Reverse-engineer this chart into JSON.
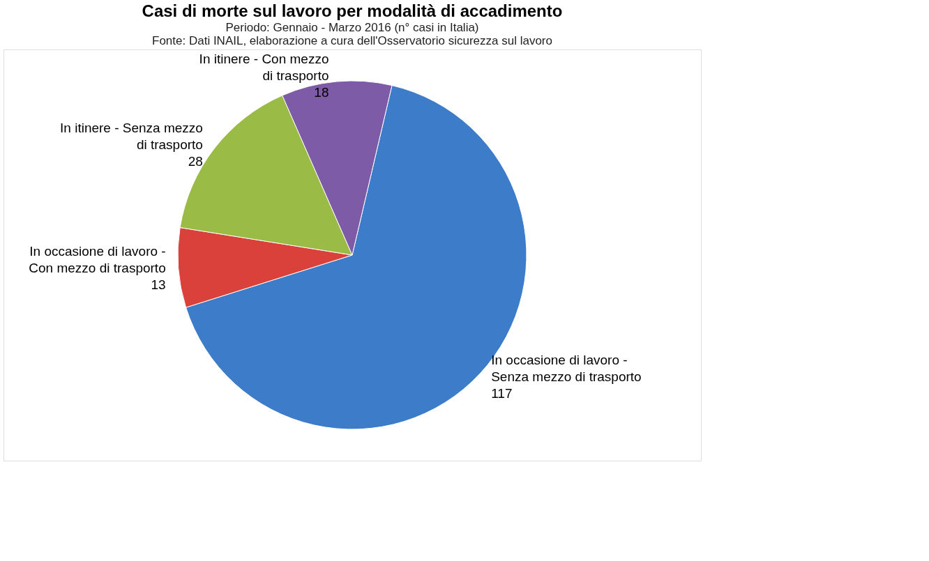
{
  "chart_data": {
    "type": "pie",
    "title": "Casi di morte sul lavoro per modalità di accadimento",
    "subtitle": "Periodo: Gennaio - Marzo 2016 (n° casi in Italia)",
    "annotations": [
      "Fonte: Dati INAIL, elaborazione a cura dell'Osservatorio sicurezza sul lavoro"
    ],
    "categories": [
      "In occasione di lavoro - Senza mezzo di trasporto",
      "In occasione di lavoro - Con mezzo di trasporto",
      "In itinere - Senza mezzo di trasporto",
      "In itinere - Con mezzo di trasporto"
    ],
    "values": [
      117,
      13,
      28,
      18
    ],
    "colors": [
      "#3d7cc9",
      "#d9413a",
      "#9bbb47",
      "#7d5ba6"
    ],
    "data_labels": true,
    "legend": false
  }
}
